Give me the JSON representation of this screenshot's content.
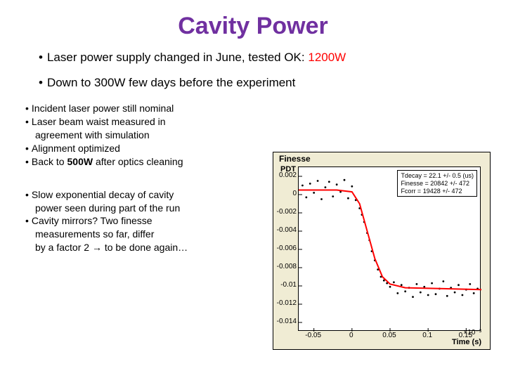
{
  "title": "Cavity Power",
  "top_bullets": {
    "b1_pre": "Laser power supply changed in June, tested OK: ",
    "b1_val": "1200W",
    "b2": "Down to 300W few days before the experiment"
  },
  "group1": {
    "l1": "Incident laser power still nominal",
    "l2a": "Laser beam waist measured in",
    "l2b": "agreement with simulation",
    "l3": "Alignment optimized",
    "l4a": "Back to ",
    "l4b": "500W",
    "l4c": " after optics cleaning"
  },
  "group2": {
    "l1a": "Slow exponential decay of cavity",
    "l1b": "power seen during part of the run",
    "l2a": "Cavity mirrors? Two finesse",
    "l2b": "measurements so far, differ",
    "l2c_pre": "by a factor 2 ",
    "l2c_post": " to be done again…"
  },
  "arrow": "→",
  "chart": {
    "title": "Finesse",
    "ylabel": "PDT",
    "xlabel": "Time (s)",
    "xexp": "×10⁻³",
    "stat": {
      "l1": "Tdecay = 22.1 +/- 0.5 (us)",
      "l2": "Finesse = 20842 +/- 472",
      "l3": "Fcorr = 19428 +/- 472"
    },
    "yticks": [
      {
        "v": "0.002",
        "pos": 0
      },
      {
        "v": "0",
        "pos": 1
      },
      {
        "v": "-0.002",
        "pos": 2
      },
      {
        "v": "-0.004",
        "pos": 3
      },
      {
        "v": "-0.006",
        "pos": 4
      },
      {
        "v": "-0.008",
        "pos": 5
      },
      {
        "v": "-0.01",
        "pos": 6
      },
      {
        "v": "-0.012",
        "pos": 7
      },
      {
        "v": "-0.014",
        "pos": 8
      }
    ],
    "xticks": [
      {
        "v": "-0.05",
        "pos": 0
      },
      {
        "v": "0",
        "pos": 1
      },
      {
        "v": "0.05",
        "pos": 2
      },
      {
        "v": "0.1",
        "pos": 3
      },
      {
        "v": "0.15",
        "pos": 4
      }
    ],
    "curve_color": "#ff0000",
    "point_color": "#000000",
    "plot_bg": "#ffffff",
    "chart_bg": "#f0ecd4",
    "x_range": [
      -0.07,
      0.17
    ],
    "y_range": [
      -0.015,
      0.003
    ],
    "curve": [
      [
        -0.07,
        0.0005
      ],
      [
        -0.02,
        0.0005
      ],
      [
        0.0,
        0.0003
      ],
      [
        0.01,
        -0.001
      ],
      [
        0.02,
        -0.004
      ],
      [
        0.03,
        -0.007
      ],
      [
        0.04,
        -0.009
      ],
      [
        0.05,
        -0.0098
      ],
      [
        0.07,
        -0.0102
      ],
      [
        0.17,
        -0.0104
      ]
    ],
    "points": [
      [
        -0.065,
        0.001
      ],
      [
        -0.06,
        -0.0003
      ],
      [
        -0.055,
        0.0012
      ],
      [
        -0.05,
        0.0002
      ],
      [
        -0.045,
        0.0015
      ],
      [
        -0.04,
        -0.0005
      ],
      [
        -0.035,
        0.0008
      ],
      [
        -0.03,
        0.0014
      ],
      [
        -0.025,
        -0.0002
      ],
      [
        -0.02,
        0.0011
      ],
      [
        -0.015,
        0.0003
      ],
      [
        -0.01,
        0.0016
      ],
      [
        -0.005,
        -0.0004
      ],
      [
        0.0,
        0.0009
      ],
      [
        0.005,
        -0.0006
      ],
      [
        0.01,
        -0.0015
      ],
      [
        0.013,
        -0.0022
      ],
      [
        0.016,
        -0.003
      ],
      [
        0.02,
        -0.0042
      ],
      [
        0.023,
        -0.005
      ],
      [
        0.026,
        -0.0062
      ],
      [
        0.03,
        -0.0072
      ],
      [
        0.034,
        -0.0082
      ],
      [
        0.038,
        -0.009
      ],
      [
        0.042,
        -0.0094
      ],
      [
        0.046,
        -0.0097
      ],
      [
        0.05,
        -0.0101
      ],
      [
        0.055,
        -0.0096
      ],
      [
        0.06,
        -0.0108
      ],
      [
        0.065,
        -0.0099
      ],
      [
        0.07,
        -0.0106
      ],
      [
        0.075,
        -0.0102
      ],
      [
        0.08,
        -0.0112
      ],
      [
        0.085,
        -0.0098
      ],
      [
        0.09,
        -0.0107
      ],
      [
        0.095,
        -0.0101
      ],
      [
        0.1,
        -0.011
      ],
      [
        0.105,
        -0.0097
      ],
      [
        0.11,
        -0.0109
      ],
      [
        0.115,
        -0.0103
      ],
      [
        0.12,
        -0.0095
      ],
      [
        0.125,
        -0.0111
      ],
      [
        0.13,
        -0.0102
      ],
      [
        0.135,
        -0.0107
      ],
      [
        0.14,
        -0.0099
      ],
      [
        0.145,
        -0.011
      ],
      [
        0.15,
        -0.0104
      ],
      [
        0.155,
        -0.0098
      ],
      [
        0.16,
        -0.0108
      ],
      [
        0.165,
        -0.0103
      ]
    ]
  }
}
